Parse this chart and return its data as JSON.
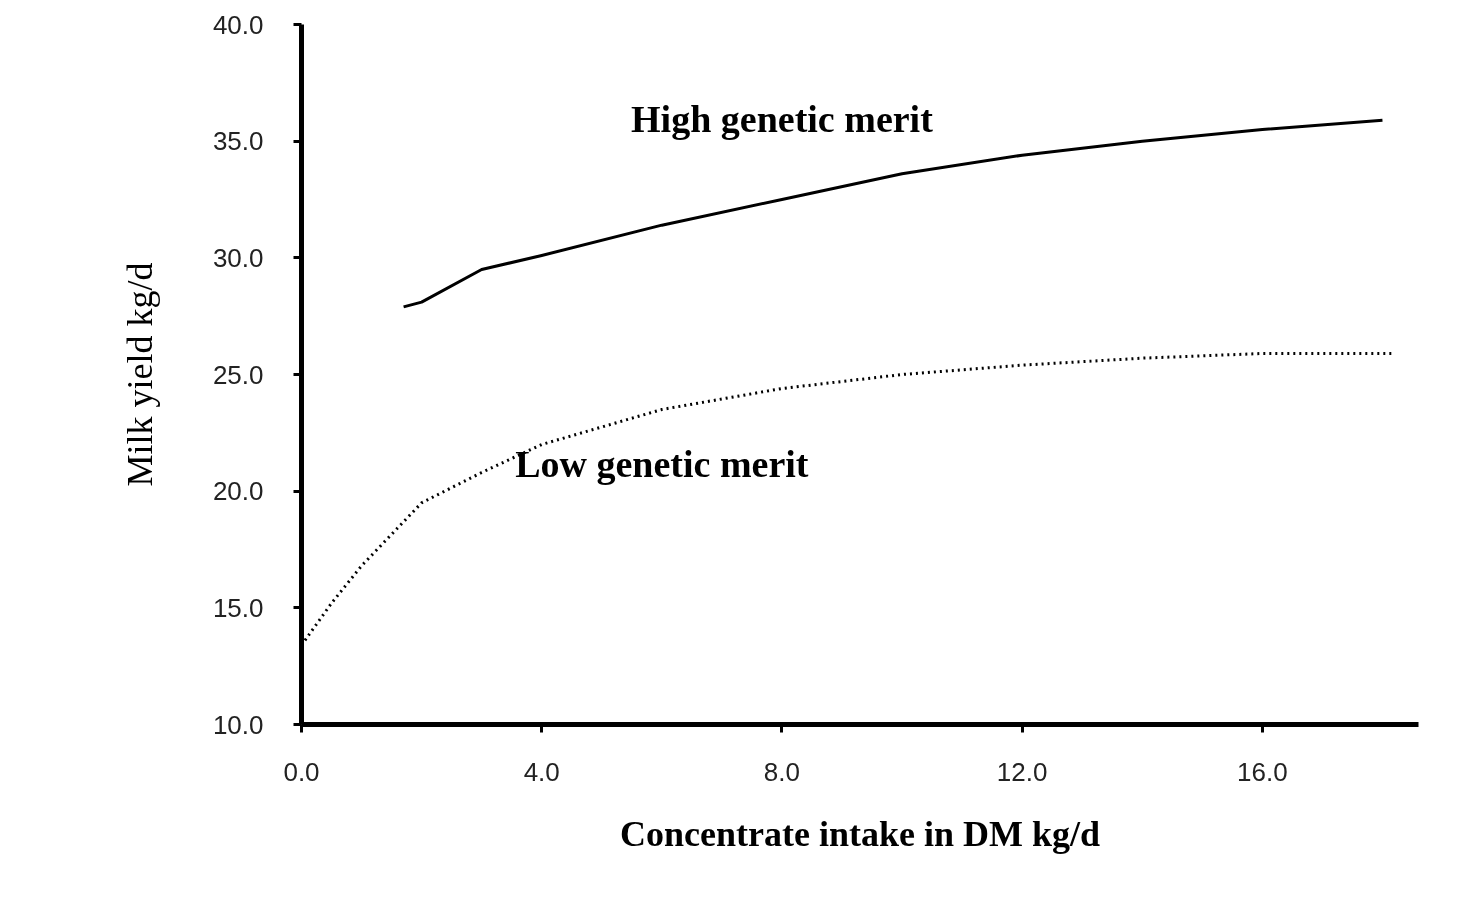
{
  "chart_data": {
    "type": "line",
    "xlabel": "Concentrate intake in DM kg/d",
    "ylabel": "Milk yield kg/d",
    "xlim": [
      0,
      18.6
    ],
    "ylim": [
      10,
      40
    ],
    "xticks": [
      {
        "value": 0,
        "label": "0.0"
      },
      {
        "value": 4,
        "label": "4.0"
      },
      {
        "value": 8,
        "label": "8.0"
      },
      {
        "value": 12,
        "label": "12.0"
      },
      {
        "value": 16,
        "label": "16.0"
      }
    ],
    "yticks": [
      {
        "value": 10,
        "label": "10.0"
      },
      {
        "value": 15,
        "label": "15.0"
      },
      {
        "value": 20,
        "label": "20.0"
      },
      {
        "value": 25,
        "label": "25.0"
      },
      {
        "value": 30,
        "label": "30.0"
      },
      {
        "value": 35,
        "label": "35.0"
      },
      {
        "value": 40,
        "label": "40.0"
      }
    ],
    "grid": false,
    "marker": "none",
    "series": [
      {
        "name": "High genetic merit",
        "color": "#000000",
        "line_style": "solid",
        "x": [
          1.7,
          2,
          3,
          4,
          6,
          8,
          10,
          12,
          14,
          16,
          18
        ],
        "values": [
          27.9,
          28.1,
          29.5,
          30.1,
          31.4,
          32.5,
          33.6,
          34.4,
          35.0,
          35.5,
          35.9
        ]
      },
      {
        "name": "Low genetic merit",
        "color": "#000000",
        "line_style": "dotted",
        "x": [
          0,
          0.5,
          1,
          2,
          3,
          4,
          6,
          8,
          10,
          12,
          14,
          16,
          18.2
        ],
        "values": [
          13.4,
          15.2,
          16.8,
          19.5,
          20.8,
          22.0,
          23.5,
          24.4,
          25.0,
          25.4,
          25.7,
          25.9,
          25.9
        ]
      }
    ]
  }
}
